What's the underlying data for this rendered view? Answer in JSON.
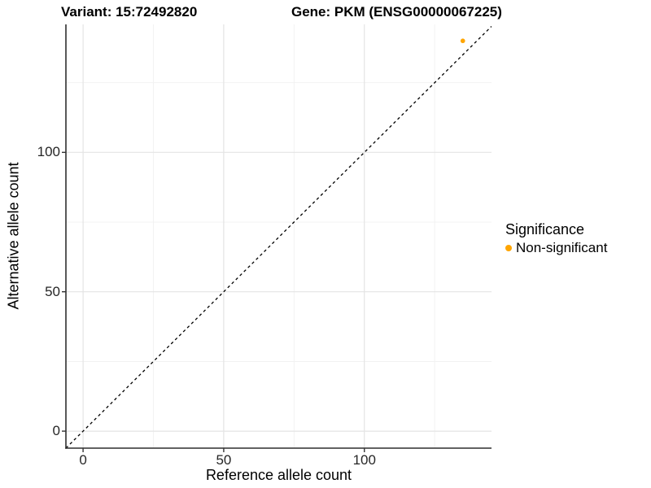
{
  "header": {
    "variant_title": "Variant: 15:72492820",
    "gene_title": "Gene: PKM (ENSG00000067225)"
  },
  "colors": {
    "point": "#FFA500",
    "grid_major": "#E4E4E4",
    "grid_minor": "#F1F1F1",
    "axis_line": "#2F2F2F",
    "tick_mark": "#333333",
    "dashed_line": "#000000",
    "background": "#FFFFFF"
  },
  "chart_data": {
    "type": "scatter",
    "title": "Variant: 15:72492820",
    "subtitle": "Gene: PKM (ENSG00000067225)",
    "xlabel": "Reference allele count",
    "ylabel": "Alternative allele count",
    "xlim": [
      -6.1,
      145.2
    ],
    "ylim": [
      -6.1,
      145.9
    ],
    "xticks": [
      0,
      50,
      100
    ],
    "yticks": [
      0,
      50,
      100
    ],
    "xminor": [
      25,
      75,
      125
    ],
    "yminor": [
      25,
      75,
      125
    ],
    "grid": true,
    "legend": {
      "title": "Significance",
      "position": "right",
      "entries": [
        {
          "label": "Non-significant",
          "color": "#FFA500"
        }
      ]
    },
    "series": [
      {
        "name": "Non-significant",
        "color": "#FFA500",
        "points": [
          {
            "x": 135,
            "y": 140
          }
        ]
      }
    ],
    "reference_line": {
      "type": "identity",
      "equation": "y = x",
      "style": "dashed",
      "color": "#000000"
    }
  }
}
